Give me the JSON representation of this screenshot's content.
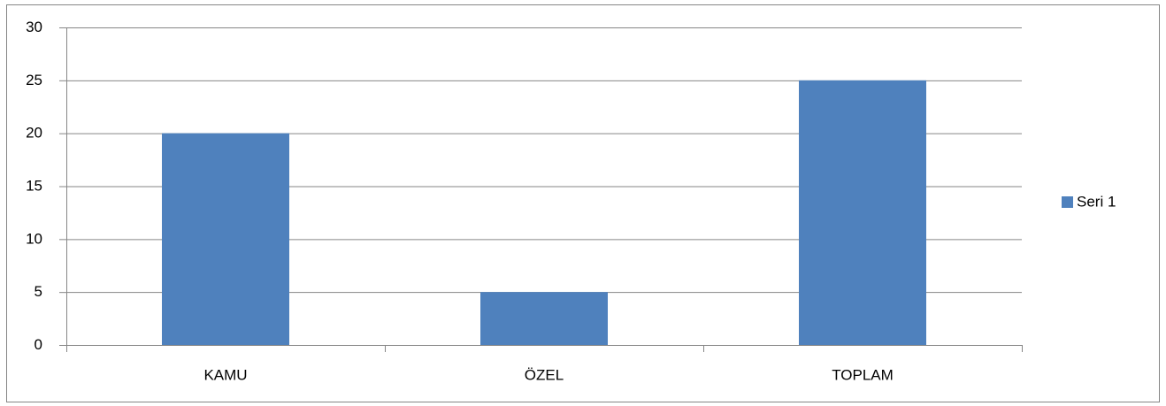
{
  "chart_data": {
    "type": "bar",
    "categories": [
      "KAMU",
      "ÖZEL",
      "TOPLAM"
    ],
    "series": [
      {
        "name": "Seri 1",
        "color": "#4f81bd",
        "values": [
          20,
          5,
          25
        ]
      }
    ],
    "ylim": [
      0,
      30
    ],
    "yticks": [
      0,
      5,
      10,
      15,
      20,
      25,
      30
    ],
    "grid": true,
    "legend": "right"
  }
}
